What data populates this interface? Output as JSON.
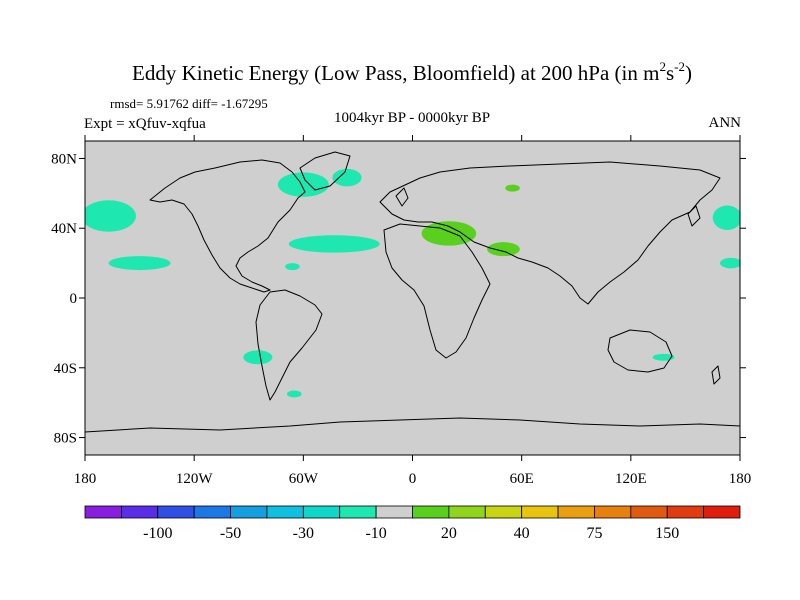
{
  "chart_data": {
    "type": "heatmap",
    "title": {
      "main": "Eddy Kinetic Energy (Low Pass, Bloomfield) at 200 hPa (in m",
      "sup1": "2",
      "mid": "s",
      "sup2": "-2",
      "end": ")"
    },
    "stats": "rmsd= 5.91762 diff= -1.67295",
    "experiment": "Expt = xQfuv-xqfua",
    "period": "1004kyr BP - 0000kyr BP",
    "season": "ANN",
    "lon_range": [
      -180,
      180
    ],
    "lat_range": [
      -90,
      90
    ],
    "x_ticks": [
      {
        "lon": -180,
        "label": "180"
      },
      {
        "lon": -120,
        "label": "120W"
      },
      {
        "lon": -60,
        "label": "60W"
      },
      {
        "lon": 0,
        "label": "0"
      },
      {
        "lon": 60,
        "label": "60E"
      },
      {
        "lon": 120,
        "label": "120E"
      },
      {
        "lon": 180,
        "label": "180"
      }
    ],
    "y_ticks": [
      {
        "lat": 80,
        "label": "80N"
      },
      {
        "lat": 40,
        "label": "40N"
      },
      {
        "lat": 0,
        "label": "0"
      },
      {
        "lat": -40,
        "label": "40S"
      },
      {
        "lat": -80,
        "label": "80S"
      }
    ],
    "colorbar": {
      "colors": [
        "#8a1ee0",
        "#5a2ee8",
        "#2e50e6",
        "#1b78e6",
        "#14a0e0",
        "#10c0e0",
        "#10d8c8",
        "#1ee8b0",
        "#cfcfcf",
        "#5ad01e",
        "#90d41c",
        "#c8d414",
        "#e8c410",
        "#e8a010",
        "#e88010",
        "#e05a10",
        "#e03c10",
        "#e01e10"
      ],
      "labels": [
        {
          "boundary": 2,
          "text": "-100"
        },
        {
          "boundary": 4,
          "text": "-50"
        },
        {
          "boundary": 6,
          "text": "-30"
        },
        {
          "boundary": 8,
          "text": "-10"
        },
        {
          "boundary": 10,
          "text": "20"
        },
        {
          "boundary": 12,
          "text": "40"
        },
        {
          "boundary": 14,
          "text": "75"
        },
        {
          "boundary": 16,
          "text": "150"
        }
      ]
    },
    "background_color": "#cfcfcf",
    "anomalies": [
      {
        "name": "north-pacific-east",
        "level": "-10 to -30",
        "color": "#1ee8b0",
        "lon": -167,
        "lat": 47,
        "rlon": 15,
        "rlat": 9
      },
      {
        "name": "north-pacific-east-band",
        "level": "-10 to -30",
        "color": "#1ee8b0",
        "lon": -150,
        "lat": 20,
        "rlon": 17,
        "rlat": 4
      },
      {
        "name": "north-pacific-west",
        "level": "-10 to -30",
        "color": "#1ee8b0",
        "lon": 173,
        "lat": 46,
        "rlon": 8,
        "rlat": 7
      },
      {
        "name": "north-pacific-west-band",
        "level": "-10 to -30",
        "color": "#1ee8b0",
        "lon": 175,
        "lat": 20,
        "rlon": 6,
        "rlat": 3
      },
      {
        "name": "north-atlantic-band",
        "level": "-10 to -30",
        "color": "#1ee8b0",
        "lon": -43,
        "lat": 31,
        "rlon": 25,
        "rlat": 5
      },
      {
        "name": "labrador-sea",
        "level": "-10 to -30",
        "color": "#1ee8b0",
        "lon": -60,
        "lat": 65,
        "rlon": 14,
        "rlat": 7
      },
      {
        "name": "north-atlantic-north",
        "level": "-10 to -30",
        "color": "#1ee8b0",
        "lon": -36,
        "lat": 69,
        "rlon": 8,
        "rlat": 5
      },
      {
        "name": "caribbean",
        "level": "-10 to -30",
        "color": "#1ee8b0",
        "lon": -66,
        "lat": 18,
        "rlon": 4,
        "rlat": 2
      },
      {
        "name": "south-pacific-chile",
        "level": "-10 to -30",
        "color": "#1ee8b0",
        "lon": -85,
        "lat": -34,
        "rlon": 8,
        "rlat": 4
      },
      {
        "name": "drake-passage",
        "level": "-10 to -30",
        "color": "#1ee8b0",
        "lon": -65,
        "lat": -55,
        "rlon": 4,
        "rlat": 2
      },
      {
        "name": "south-australia",
        "level": "-10 to -30",
        "color": "#1ee8b0",
        "lon": 138,
        "lat": -34,
        "rlon": 6,
        "rlat": 2
      },
      {
        "name": "mediterranean",
        "level": "10 to 20",
        "color": "#5ad01e",
        "lon": 20,
        "lat": 37,
        "rlon": 15,
        "rlat": 7
      },
      {
        "name": "middle-east",
        "level": "10 to 20",
        "color": "#5ad01e",
        "lon": 50,
        "lat": 28,
        "rlon": 9,
        "rlat": 4
      },
      {
        "name": "siberia",
        "level": "10 to 20",
        "color": "#5ad01e",
        "lon": 55,
        "lat": 63,
        "rlon": 4,
        "rlat": 2
      }
    ]
  }
}
